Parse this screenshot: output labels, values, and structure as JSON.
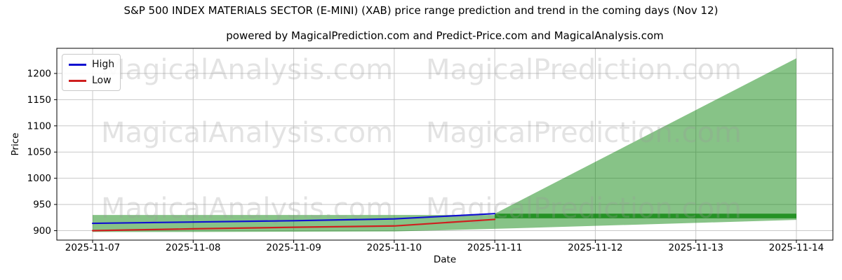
{
  "chart_data": {
    "type": "line",
    "title": "S&P 500 INDEX MATERIALS SECTOR (E-MINI) (XAB) price range prediction and trend in the coming days (Nov 12)",
    "subtitle": "powered by MagicalPrediction.com and Predict-Price.com and MagicalAnalysis.com",
    "xlabel": "Date",
    "ylabel": "Price",
    "x": [
      "2025-11-07",
      "2025-11-08",
      "2025-11-09",
      "2025-11-10",
      "2025-11-11",
      "2025-11-12",
      "2025-11-13",
      "2025-11-14"
    ],
    "series": [
      {
        "name": "High",
        "color": "#1010d0",
        "x_indices": [
          0,
          1,
          2,
          3,
          4
        ],
        "values": [
          914,
          916.5,
          919,
          922.5,
          932.5
        ]
      },
      {
        "name": "Low",
        "color": "#cf1f1f",
        "x_indices": [
          0,
          1,
          2,
          3,
          4
        ],
        "values": [
          900,
          903.5,
          906.5,
          909,
          921.5
        ]
      }
    ],
    "bands": {
      "historical": {
        "from_index": 0,
        "to_index": 4,
        "top_values": [
          930,
          930,
          930,
          930,
          930
        ],
        "bottom_values": [
          897.5,
          897.5,
          898,
          898.5,
          903.5
        ],
        "fill": "#008000",
        "opacity": 0.47
      },
      "forecast_fan": {
        "from_index": 4,
        "to_index": 7,
        "top_start": 932.5,
        "top_end": 1229,
        "bottom_start": 903.5,
        "bottom_end": 920.5,
        "fill": "#008000",
        "opacity": 0.47
      },
      "forecast_core": {
        "from_index": 4,
        "to_index": 7,
        "top": 932.5,
        "bottom": 923.5,
        "fill": "#008000",
        "opacity": 0.72
      }
    },
    "yticks": [
      900,
      950,
      1000,
      1050,
      1100,
      1150,
      1200
    ],
    "ylim": [
      882,
      1248
    ],
    "grid": true,
    "grid_color": "#c8c8c8",
    "legend": {
      "position": "upper-left",
      "entries": [
        {
          "label": "High",
          "color": "#1010d0"
        },
        {
          "label": "Low",
          "color": "#cf1f1f"
        }
      ]
    },
    "watermarks": [
      "MagicalAnalysis.com",
      "MagicalPrediction.com"
    ]
  }
}
